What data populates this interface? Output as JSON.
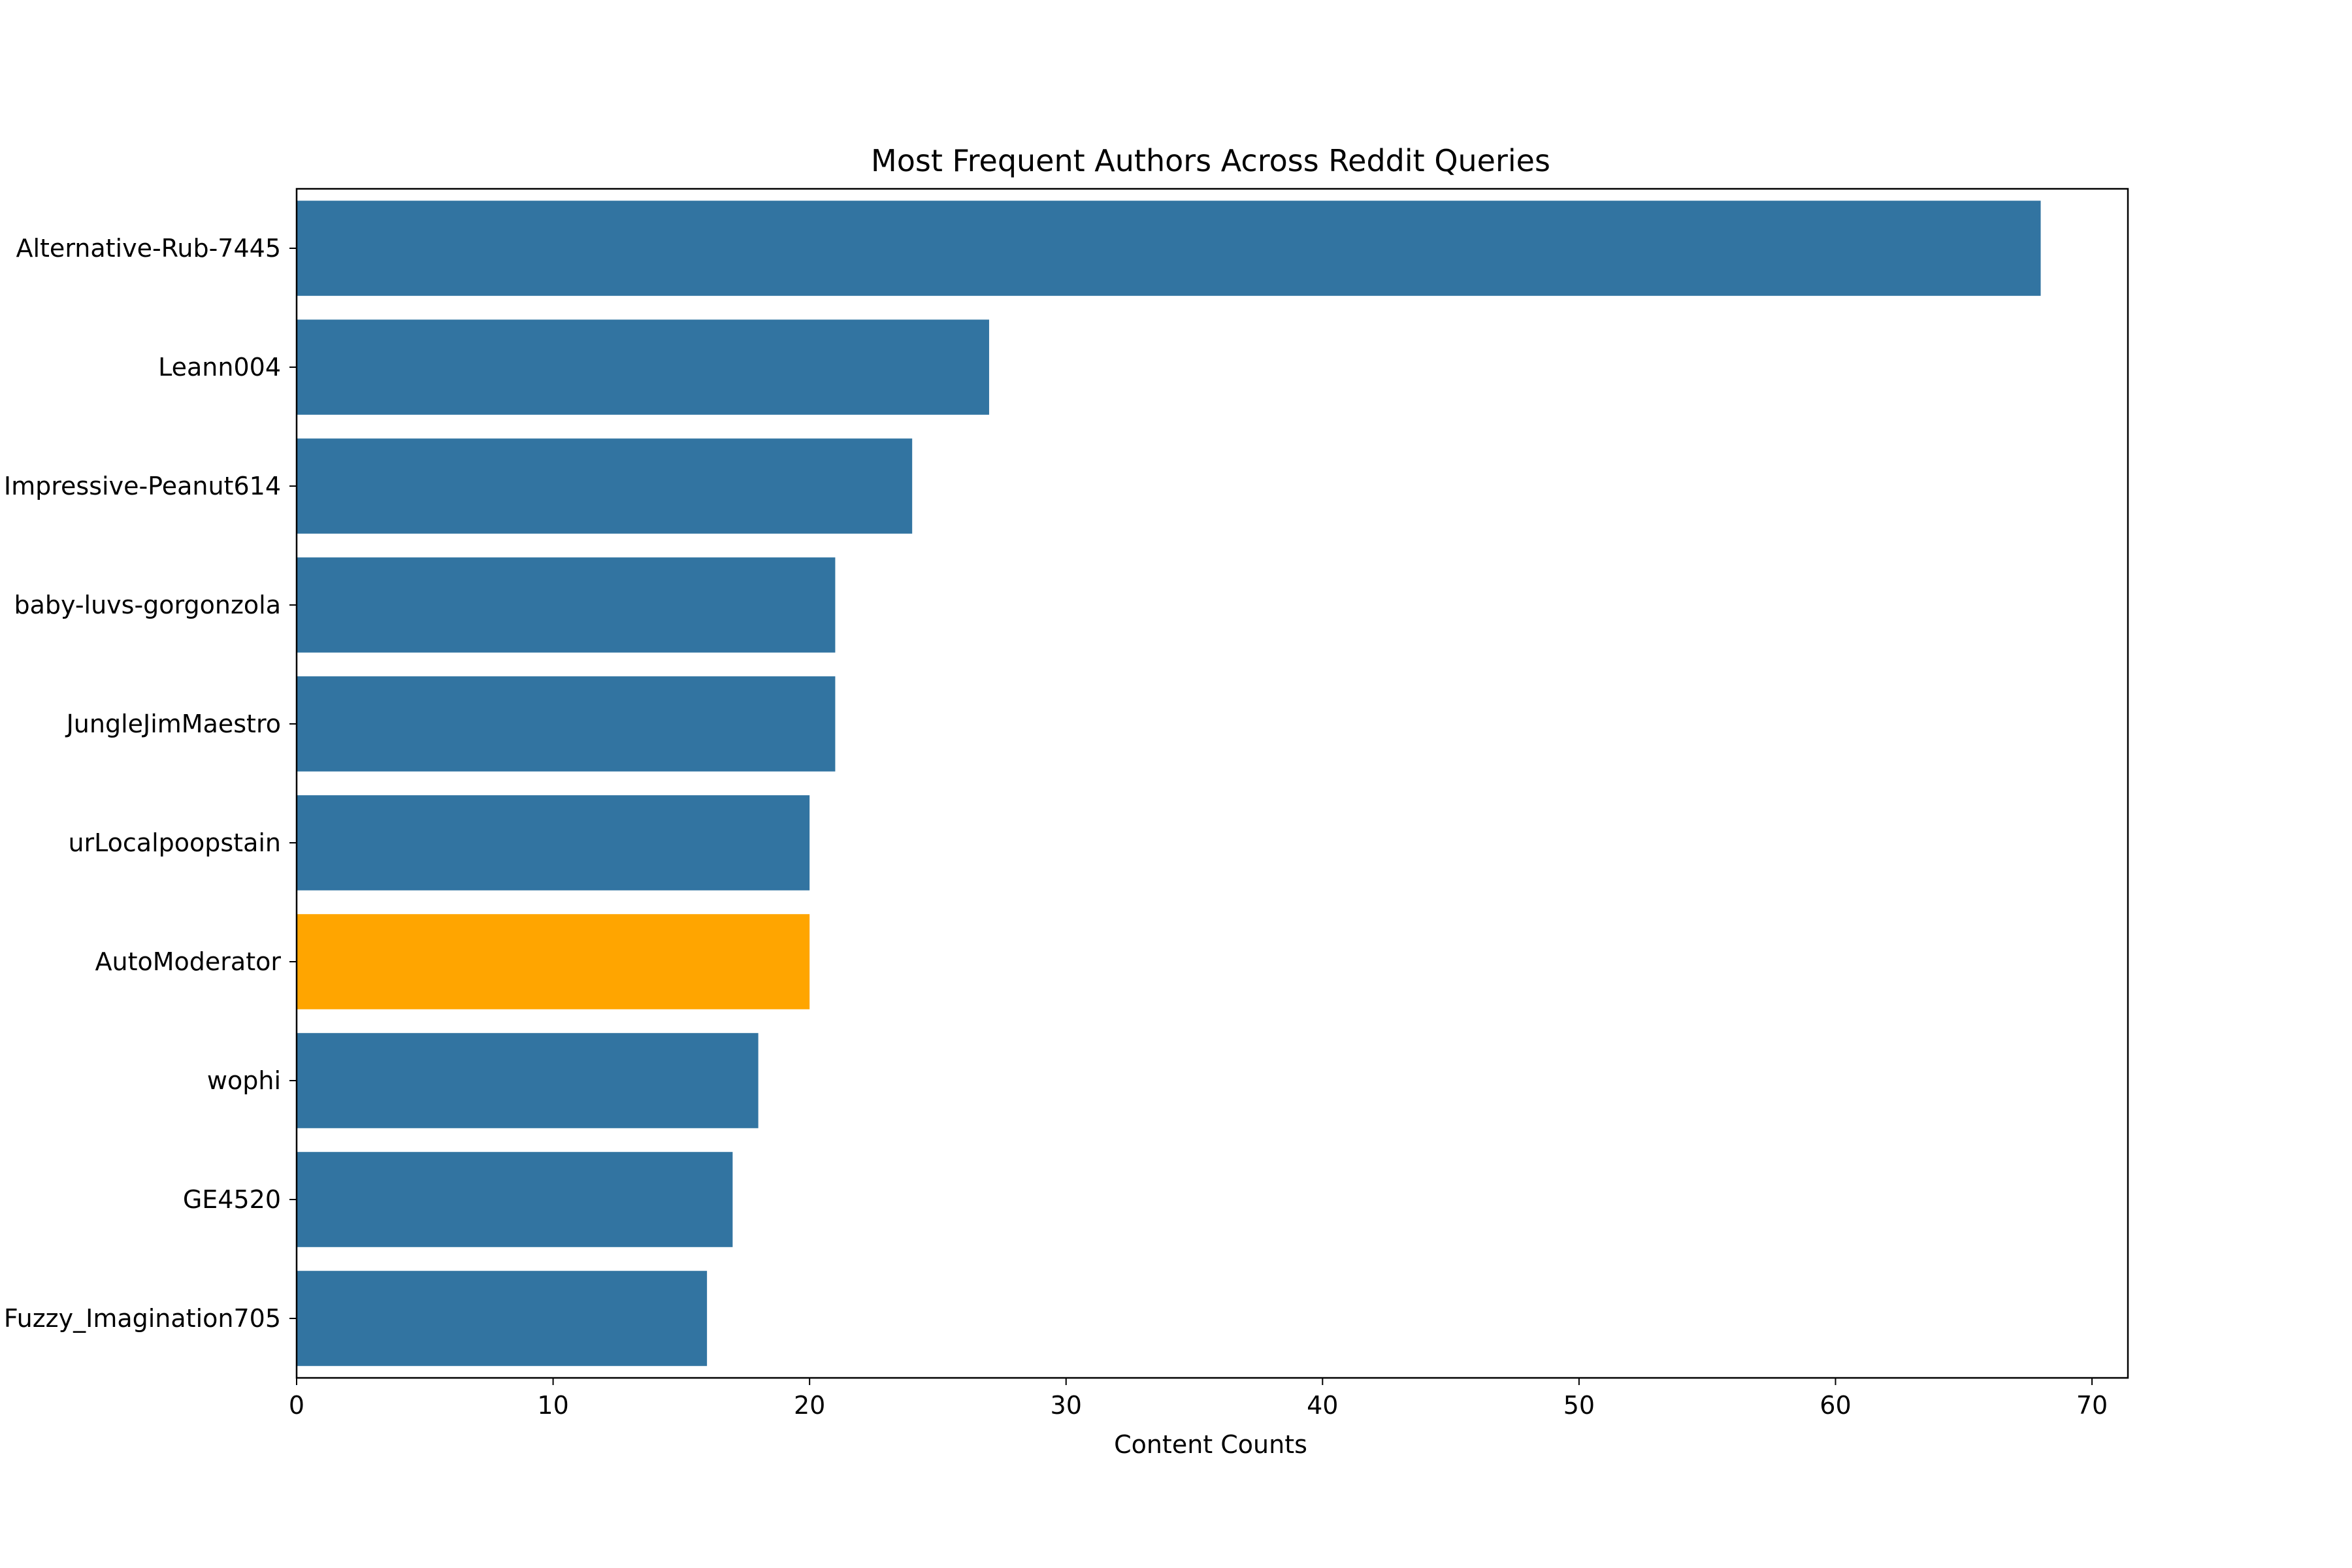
{
  "chart_data": {
    "type": "bar",
    "orientation": "horizontal",
    "title": "Most Frequent Authors Across Reddit Queries",
    "xlabel": "Content Counts",
    "ylabel": "",
    "xlim": [
      0,
      71.4
    ],
    "xticks": [
      0,
      10,
      20,
      30,
      40,
      50,
      60,
      70
    ],
    "xtick_labels": [
      "0",
      "10",
      "20",
      "30",
      "40",
      "50",
      "60",
      "70"
    ],
    "categories": [
      "Alternative-Rub-7445",
      "Leann004",
      "Impressive-Peanut614",
      "baby-luvs-gorgonzola",
      "JungleJimMaestro",
      "urLocalpoopstain",
      "AutoModerator",
      "wophi",
      "GE4520",
      "Fuzzy_Imagination705"
    ],
    "values": [
      68,
      27,
      24,
      21,
      21,
      20,
      20,
      18,
      17,
      16
    ],
    "bar_colors": [
      "#3274a1",
      "#3274a1",
      "#3274a1",
      "#3274a1",
      "#3274a1",
      "#3274a1",
      "#ffa500",
      "#3274a1",
      "#3274a1",
      "#3274a1"
    ],
    "highlighted_category": "AutoModerator",
    "grid": false,
    "legend": "none"
  }
}
